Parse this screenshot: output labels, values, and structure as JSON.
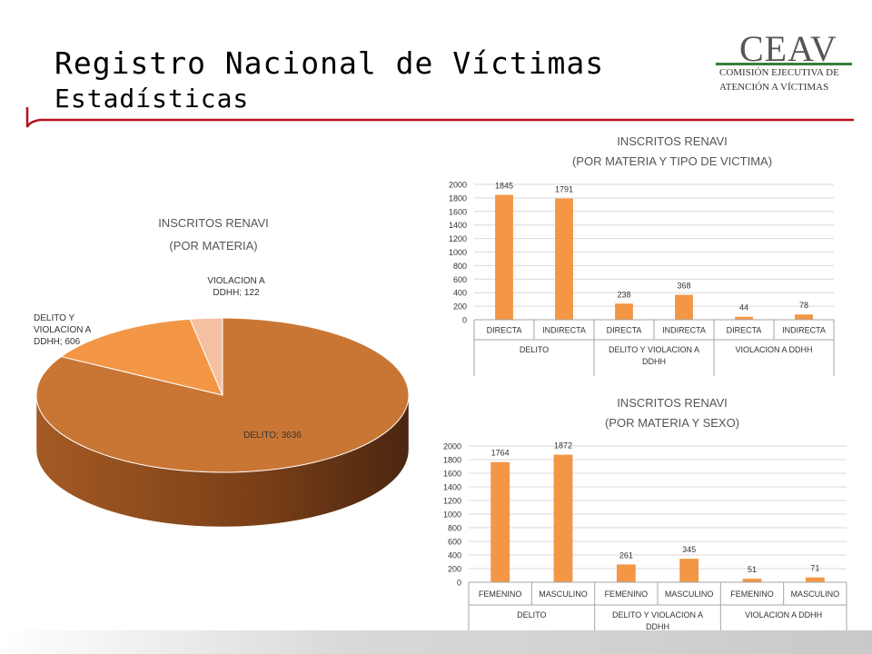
{
  "header": {
    "title": "Registro Nacional de Víctimas",
    "subtitle": "Estadísticas",
    "logo": {
      "main": "CEAV",
      "line1": "COMISIÓN EJECUTIVA DE",
      "line2": "ATENCIÓN A VÍCTIMAS"
    },
    "accent_color": "#b5121b"
  },
  "chart_data": [
    {
      "type": "pie",
      "title": "INSCRITOS RENAVI",
      "subtitle": "(POR MATERIA)",
      "slices": [
        {
          "label": "DELITO",
          "value": 3636,
          "data_label": "DELITO; 3636",
          "color": "#c97635"
        },
        {
          "label": "DELITO Y VIOLACION A DDHH",
          "value": 606,
          "data_label": "DELITO Y VIOLACION A DDHH; 606",
          "color": "#f39645"
        },
        {
          "label": "VIOLACION A DDHH",
          "value": 122,
          "data_label": "VIOLACION A DDHH; 122",
          "color": "#f4c0a1"
        }
      ]
    },
    {
      "type": "bar",
      "title": "INSCRITOS RENAVI",
      "subtitle": "(POR MATERIA Y TIPO DE VICTIMA)",
      "categories": [
        "DIRECTA",
        "INDIRECTA",
        "DIRECTA",
        "INDIRECTA",
        "DIRECTA",
        "INDIRECTA"
      ],
      "groups": [
        "DELITO",
        "DELITO Y VIOLACION A DDHH",
        "VIOLACION A DDHH"
      ],
      "values": [
        1845,
        1791,
        238,
        368,
        44,
        78
      ],
      "ylim": [
        0,
        2000
      ],
      "yticks": [
        0,
        200,
        400,
        600,
        800,
        1000,
        1200,
        1400,
        1600,
        1800,
        2000
      ],
      "color": "#f39645"
    },
    {
      "type": "bar",
      "title": "INSCRITOS RENAVI",
      "subtitle": "(POR MATERIA Y SEXO)",
      "categories": [
        "FEMENINO",
        "MASCULINO",
        "FEMENINO",
        "MASCULINO",
        "FEMENINO",
        "MASCULINO"
      ],
      "groups": [
        "DELITO",
        "DELITO Y VIOLACION A DDHH",
        "VIOLACION A DDHH"
      ],
      "values": [
        1764,
        1872,
        261,
        345,
        51,
        71
      ],
      "ylim": [
        0,
        2000
      ],
      "yticks": [
        0,
        200,
        400,
        600,
        800,
        1000,
        1200,
        1400,
        1600,
        1800,
        2000
      ],
      "color": "#f39645"
    }
  ]
}
